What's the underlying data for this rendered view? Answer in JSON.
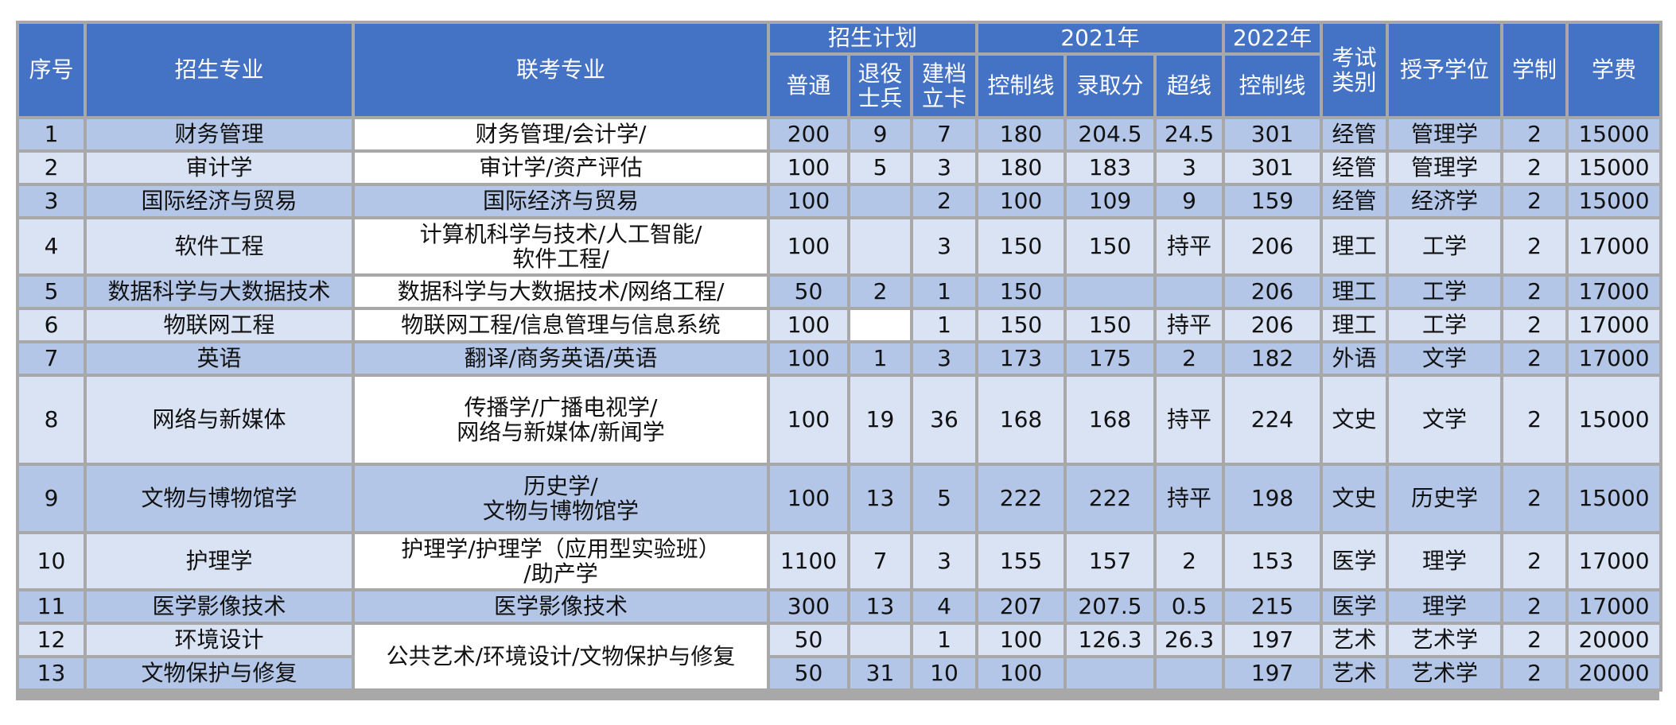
{
  "header": {
    "seq": "序号",
    "major": "招生专业",
    "exam_major": "联考专业",
    "plan": "招生计划",
    "year2021": "2021年",
    "year2022": "2022年",
    "exam_type": [
      "考试",
      "类别"
    ],
    "degree": "授予学位",
    "duration": "学制",
    "fee": "学费",
    "normal": "普通",
    "veteran": [
      "退役",
      "士兵"
    ],
    "poverty": [
      "建档",
      "立卡"
    ],
    "control_2021": "控制线",
    "score_2021": "录取分",
    "over_2021": "超线",
    "control_2022": "控制线"
  },
  "rows": [
    {
      "seq": "1",
      "major": "财务管理",
      "normal": "200",
      "veteran": "9",
      "poverty": "7",
      "control2021": "180",
      "score2021": "204.5",
      "over2021": "24.5",
      "control2022": "301",
      "type": "经管",
      "degree": "管理学",
      "duration": "2",
      "fee": "15000"
    },
    {
      "seq": "2",
      "major": "审计学",
      "normal": "100",
      "veteran": "5",
      "poverty": "3",
      "control2021": "180",
      "score2021": "183",
      "over2021": "3",
      "control2022": "301",
      "type": "经管",
      "degree": "管理学",
      "duration": "2",
      "fee": "15000"
    },
    {
      "seq": "3",
      "major": "国际经济与贸易",
      "normal": "100",
      "veteran": "",
      "poverty": "2",
      "control2021": "100",
      "score2021": "109",
      "over2021": "9",
      "control2022": "159",
      "type": "经管",
      "degree": "经济学",
      "duration": "2",
      "fee": "15000"
    },
    {
      "seq": "4",
      "major": "软件工程",
      "normal": "100",
      "veteran": "",
      "poverty": "3",
      "control2021": "150",
      "score2021": "150",
      "over2021": "持平",
      "control2022": "206",
      "type": "理工",
      "degree": "工学",
      "duration": "2",
      "fee": "17000"
    },
    {
      "seq": "5",
      "major": "数据科学与大数据技术",
      "normal": "50",
      "veteran": "2",
      "poverty": "1",
      "control2021": "150",
      "score2021": "",
      "over2021": "",
      "control2022": "206",
      "type": "理工",
      "degree": "工学",
      "duration": "2",
      "fee": "17000"
    },
    {
      "seq": "6",
      "major": "物联网工程",
      "normal": "100",
      "veteran": "",
      "poverty": "1",
      "control2021": "150",
      "score2021": "150",
      "over2021": "持平",
      "control2022": "206",
      "type": "理工",
      "degree": "工学",
      "duration": "2",
      "fee": "17000"
    },
    {
      "seq": "7",
      "major": "英语",
      "normal": "100",
      "veteran": "1",
      "poverty": "3",
      "control2021": "173",
      "score2021": "175",
      "over2021": "2",
      "control2022": "182",
      "type": "外语",
      "degree": "文学",
      "duration": "2",
      "fee": "17000"
    },
    {
      "seq": "8",
      "major": "网络与新媒体",
      "normal": "100",
      "veteran": "19",
      "poverty": "36",
      "control2021": "168",
      "score2021": "168",
      "over2021": "持平",
      "control2022": "224",
      "type": "文史",
      "degree": "文学",
      "duration": "2",
      "fee": "15000"
    },
    {
      "seq": "9",
      "major": "文物与博物馆学",
      "normal": "100",
      "veteran": "13",
      "poverty": "5",
      "control2021": "222",
      "score2021": "222",
      "over2021": "持平",
      "control2022": "198",
      "type": "文史",
      "degree": "历史学",
      "duration": "2",
      "fee": "15000"
    },
    {
      "seq": "10",
      "major": "护理学",
      "normal": "1100",
      "veteran": "7",
      "poverty": "3",
      "control2021": "155",
      "score2021": "157",
      "over2021": "2",
      "control2022": "153",
      "type": "医学",
      "degree": "理学",
      "duration": "2",
      "fee": "17000"
    },
    {
      "seq": "11",
      "major": "医学影像技术",
      "normal": "300",
      "veteran": "13",
      "poverty": "4",
      "control2021": "207",
      "score2021": "207.5",
      "over2021": "0.5",
      "control2022": "215",
      "type": "医学",
      "degree": "理学",
      "duration": "2",
      "fee": "17000"
    },
    {
      "seq": "12",
      "major": "环境设计",
      "normal": "50",
      "veteran": "",
      "poverty": "1",
      "control2021": "100",
      "score2021": "126.3",
      "over2021": "26.3",
      "control2022": "197",
      "type": "艺术",
      "degree": "艺术学",
      "duration": "2",
      "fee": "20000"
    },
    {
      "seq": "13",
      "major": "文物保护与修复",
      "normal": "50",
      "veteran": "31",
      "poverty": "10",
      "control2021": "100",
      "score2021": "",
      "over2021": "",
      "control2022": "197",
      "type": "艺术",
      "degree": "艺术学",
      "duration": "2",
      "fee": "20000"
    }
  ],
  "exam_majors": {
    "r1": "财务管理/会计学/",
    "r2": "审计学/资产评估",
    "r3": "国际经济与贸易",
    "r4": [
      "计算机科学与技术/人工智能/",
      "软件工程/"
    ],
    "r5": "数据科学与大数据技术/网络工程/",
    "r6": "物联网工程/信息管理与信息系统",
    "r7": "翻译/商务英语/英语",
    "r8": [
      "传播学/广播电视学/",
      "网络与新媒体/新闻学"
    ],
    "r9": [
      "历史学/",
      "文物与博物馆学"
    ],
    "r10": [
      "护理学/护理学（应用型实验班）",
      "/助产学"
    ],
    "r11": "医学影像技术",
    "r12_13": "公共艺术/环境设计/文物保护与修复"
  }
}
